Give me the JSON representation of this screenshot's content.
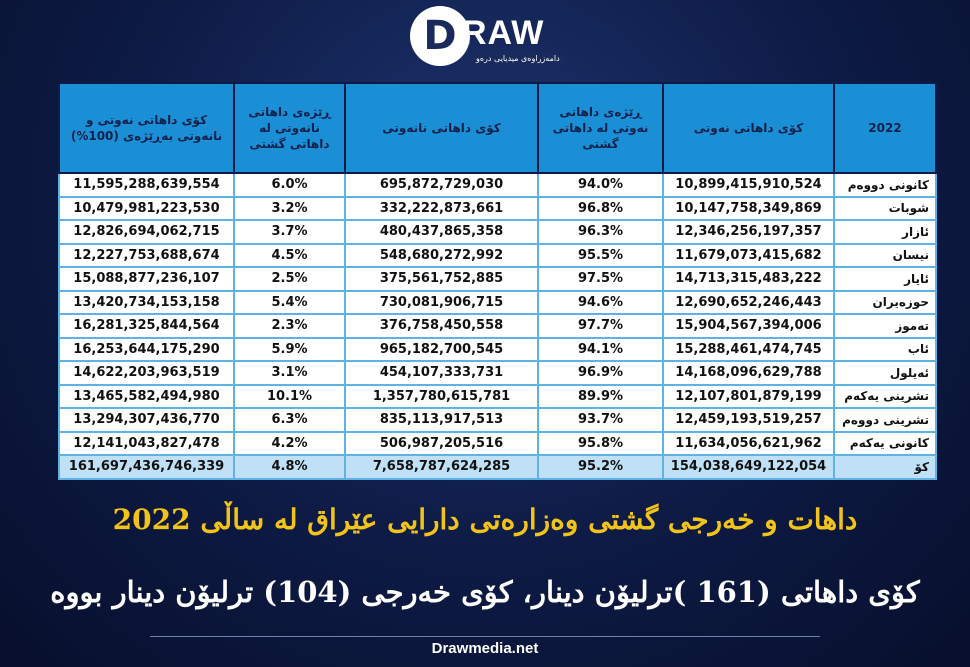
{
  "header": {
    "logo": "RAW",
    "logo_tagline": "دامەزراوەی میدیایی درەو"
  },
  "table": {
    "columns": [
      "2022",
      "کۆی داهاتی نەوتی",
      "ڕێژەی داهاتی نەوتی لە داهاتی گشتی",
      "کۆی داهاتی نانەوتی",
      "ڕێژەی داهاتی نانەوتی لە داهاتی گشتی",
      "کۆی داهاتی نەوتی و نانەوتی بەڕێژەی (100%)"
    ],
    "rows": [
      [
        "کانونی دووەم",
        "10,899,415,910,524",
        "94.0%",
        "695,872,729,030",
        "6.0%",
        "11,595,288,639,554"
      ],
      [
        "شوبات",
        "10,147,758,349,869",
        "96.8%",
        "332,222,873,661",
        "3.2%",
        "10,479,981,223,530"
      ],
      [
        "ئازار",
        "12,346,256,197,357",
        "96.3%",
        "480,437,865,358",
        "3.7%",
        "12,826,694,062,715"
      ],
      [
        "نیسان",
        "11,679,073,415,682",
        "95.5%",
        "548,680,272,992",
        "4.5%",
        "12,227,753,688,674"
      ],
      [
        "ئایار",
        "14,713,315,483,222",
        "97.5%",
        "375,561,752,885",
        "2.5%",
        "15,088,877,236,107"
      ],
      [
        "حوزەیران",
        "12,690,652,246,443",
        "94.6%",
        "730,081,906,715",
        "5.4%",
        "13,420,734,153,158"
      ],
      [
        "تەموز",
        "15,904,567,394,006",
        "97.7%",
        "376,758,450,558",
        "2.3%",
        "16,281,325,844,564"
      ],
      [
        "ئاب",
        "15,288,461,474,745",
        "94.1%",
        "965,182,700,545",
        "5.9%",
        "16,253,644,175,290"
      ],
      [
        "ئەیلول",
        "14,168,096,629,788",
        "96.9%",
        "454,107,333,731",
        "3.1%",
        "14,622,203,963,519"
      ],
      [
        "تشرینی یەکەم",
        "12,107,801,879,199",
        "89.9%",
        "1,357,780,615,781",
        "10.1%",
        "13,465,582,494,980"
      ],
      [
        "تشرینی دووەم",
        "12,459,193,519,257",
        "93.7%",
        "835,113,917,513",
        "6.3%",
        "13,294,307,436,770"
      ],
      [
        "کانونی یەکەم",
        "11,634,056,621,962",
        "95.8%",
        "506,987,205,516",
        "4.2%",
        "12,141,043,827,478"
      ],
      [
        "کۆ",
        "154,038,649,122,054",
        "95.2%",
        "7,658,787,624,285",
        "4.8%",
        "161,697,436,746,339"
      ]
    ]
  },
  "title": "داهات و خەرجی گشتی وەزارەتی دارایی عێراق لە ساڵی 2022",
  "subtitle": "کۆی داهاتی (161 )ترلیۆن دینار، کۆی خەرجی (104) ترلیۆن دینار بووە",
  "footer": "Drawmedia.net"
}
